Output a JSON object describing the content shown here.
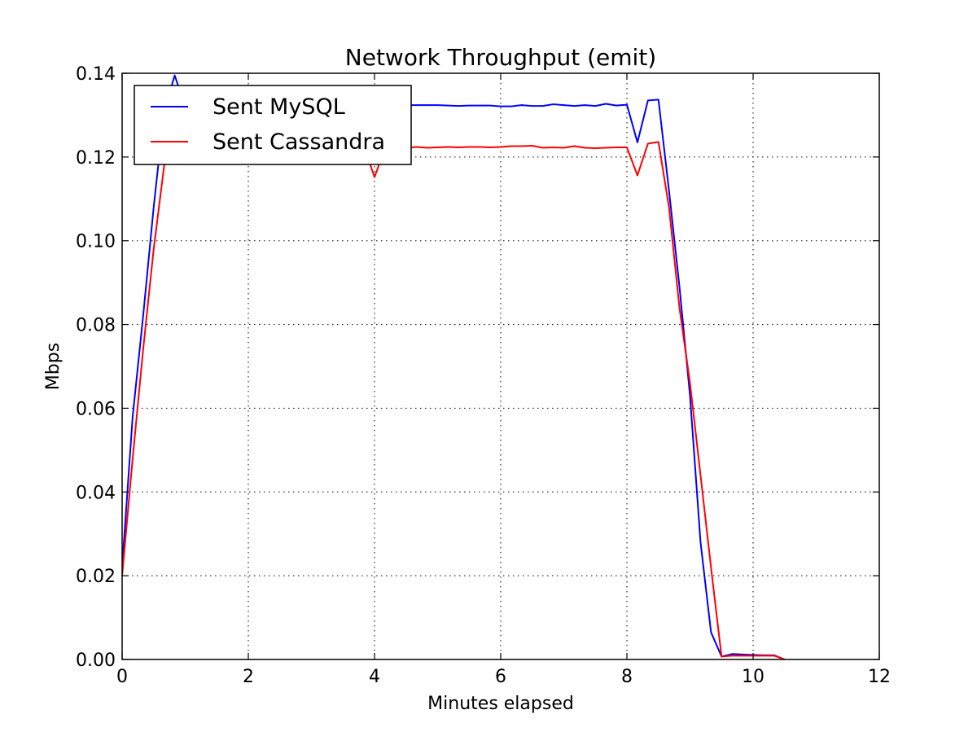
{
  "chart_data": {
    "type": "line",
    "title": "Network Throughput (emit)",
    "xlabel": "Minutes elapsed",
    "ylabel": "Mbps",
    "xlim": [
      0,
      12
    ],
    "ylim": [
      0,
      0.14
    ],
    "xticks": [
      0,
      2,
      4,
      6,
      8,
      10,
      12
    ],
    "xtick_labels": [
      "0",
      "2",
      "4",
      "6",
      "8",
      "10",
      "12"
    ],
    "yticks": [
      0,
      0.02,
      0.04,
      0.06,
      0.08,
      0.1,
      0.12,
      0.14
    ],
    "ytick_labels": [
      "0.00",
      "0.02",
      "0.04",
      "0.06",
      "0.08",
      "0.10",
      "0.12",
      "0.14"
    ],
    "grid": true,
    "legend_position": "top-left",
    "series": [
      {
        "name": "Sent MySQL",
        "color": "#0000ff",
        "x": [
          0,
          0.167,
          0.333,
          0.5,
          0.667,
          0.833,
          1.0,
          1.167,
          1.333,
          1.5,
          1.667,
          1.833,
          2.0,
          2.167,
          2.333,
          2.5,
          2.667,
          2.833,
          3.0,
          3.167,
          3.333,
          3.5,
          3.667,
          3.833,
          4.0,
          4.167,
          4.333,
          4.5,
          4.667,
          4.833,
          5.0,
          5.167,
          5.333,
          5.5,
          5.667,
          5.833,
          6.0,
          6.167,
          6.333,
          6.5,
          6.667,
          6.833,
          7.0,
          7.167,
          7.333,
          7.5,
          7.667,
          7.833,
          8.0,
          8.167,
          8.333,
          8.5,
          8.667,
          8.833,
          9.0,
          9.167,
          9.333,
          9.5,
          9.667,
          9.833,
          10.0,
          10.167,
          10.333,
          10.5
        ],
        "values": [
          0.022,
          0.058,
          0.082,
          0.108,
          0.131,
          0.1395,
          0.132,
          0.133,
          0.133,
          0.133,
          0.133,
          0.133,
          0.133,
          0.133,
          0.133,
          0.133,
          0.133,
          0.133,
          0.133,
          0.133,
          0.133,
          0.133,
          0.133,
          0.133,
          0.1315,
          0.1328,
          0.1328,
          0.1324,
          0.1324,
          0.1324,
          0.1324,
          0.1323,
          0.1322,
          0.1323,
          0.1323,
          0.1323,
          0.1321,
          0.1321,
          0.1324,
          0.1322,
          0.1322,
          0.1326,
          0.1324,
          0.1322,
          0.1324,
          0.1322,
          0.1327,
          0.1323,
          0.1325,
          0.1235,
          0.1335,
          0.1337,
          0.112,
          0.089,
          0.063,
          0.028,
          0.0065,
          0.0007,
          0.0013,
          0.0012,
          0.0011,
          0.001,
          0.001,
          0.0
        ]
      },
      {
        "name": "Sent Cassandra",
        "color": "#ff0000",
        "x": [
          0,
          0.167,
          0.333,
          0.5,
          0.667,
          0.833,
          1.0,
          1.167,
          1.333,
          1.5,
          1.667,
          1.833,
          2.0,
          2.167,
          2.333,
          2.5,
          2.667,
          2.833,
          3.0,
          3.167,
          3.333,
          3.5,
          3.667,
          3.833,
          4.0,
          4.167,
          4.333,
          4.5,
          4.667,
          4.833,
          5.0,
          5.167,
          5.333,
          5.5,
          5.667,
          5.833,
          6.0,
          6.167,
          6.333,
          6.5,
          6.667,
          6.833,
          7.0,
          7.167,
          7.333,
          7.5,
          7.667,
          7.833,
          8.0,
          8.167,
          8.333,
          8.5,
          8.667,
          8.833,
          9.0,
          9.167,
          9.333,
          9.5,
          9.667,
          9.833,
          10.0,
          10.167,
          10.333,
          10.5
        ],
        "values": [
          0.02,
          0.048,
          0.074,
          0.098,
          0.118,
          0.122,
          0.122,
          0.122,
          0.122,
          0.122,
          0.122,
          0.122,
          0.122,
          0.122,
          0.122,
          0.122,
          0.122,
          0.122,
          0.122,
          0.122,
          0.122,
          0.122,
          0.122,
          0.1225,
          0.1152,
          0.1222,
          0.1224,
          0.1222,
          0.1224,
          0.1222,
          0.1223,
          0.1224,
          0.1223,
          0.1224,
          0.1224,
          0.1223,
          0.1224,
          0.1226,
          0.1226,
          0.1227,
          0.1222,
          0.1223,
          0.1222,
          0.1226,
          0.1222,
          0.1221,
          0.1222,
          0.1223,
          0.1223,
          0.1156,
          0.1232,
          0.1236,
          0.108,
          0.084,
          0.066,
          0.044,
          0.022,
          0.0007,
          0.0009,
          0.0009,
          0.0009,
          0.0009,
          0.0009,
          0.0
        ]
      }
    ]
  }
}
